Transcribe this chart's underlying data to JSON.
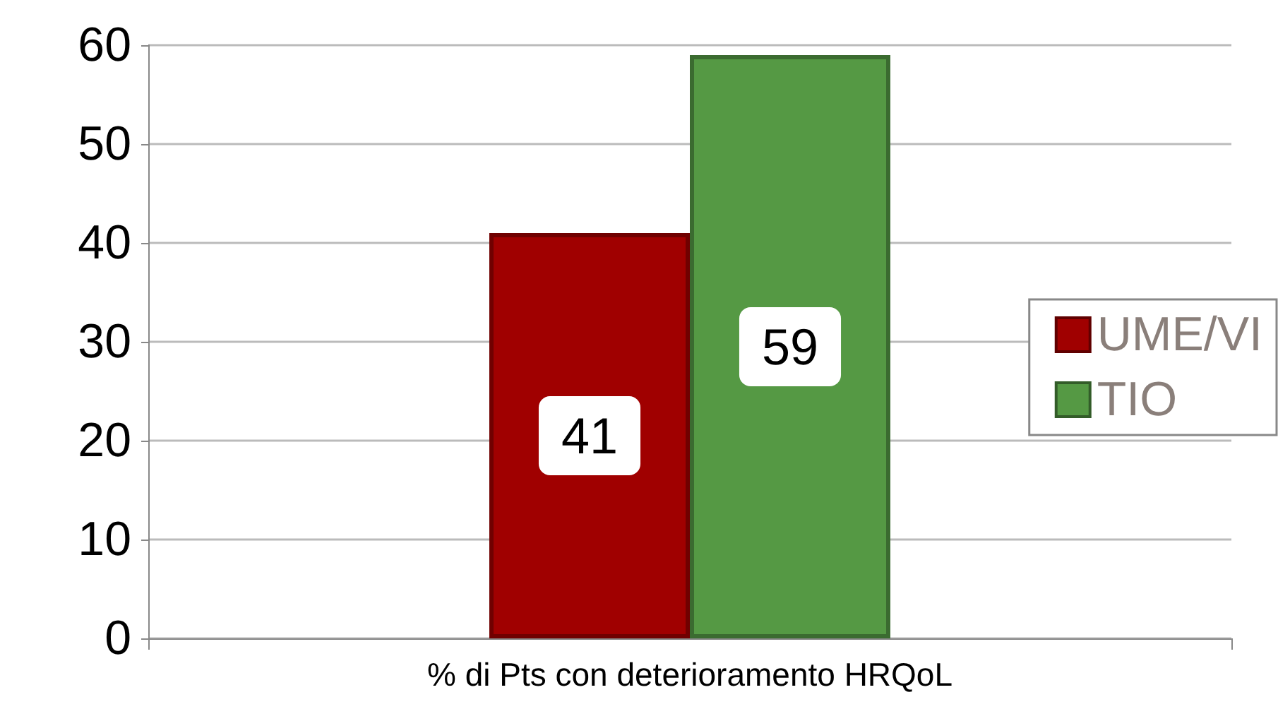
{
  "chart_data": {
    "type": "bar",
    "categories": [
      "% di Pts con deterioramento HRQoL"
    ],
    "series": [
      {
        "name": "UME/VI",
        "color": "#a00000",
        "values": [
          41
        ]
      },
      {
        "name": "TIO",
        "color": "#559944",
        "values": [
          59
        ]
      }
    ],
    "ylim": [
      0,
      60
    ],
    "yticks": [
      0,
      10,
      20,
      30,
      40,
      50,
      60
    ],
    "grid": "y",
    "legend": "right",
    "data_labels": true
  }
}
